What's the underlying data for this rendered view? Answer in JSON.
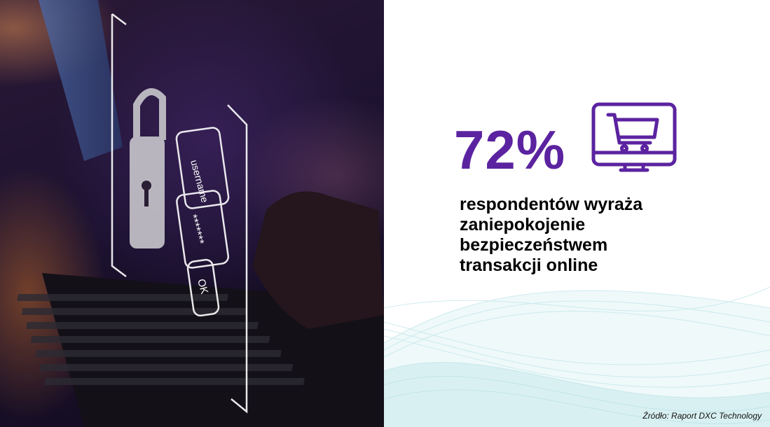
{
  "photo": {
    "login_field_username": "username",
    "login_field_password": "*******",
    "login_button": "OK"
  },
  "stat": {
    "value": "72%",
    "description_lines": [
      "respondentów wyraża",
      "zaniepokojenie",
      "bezpieczeństwem",
      "transakcji online"
    ],
    "icon": "monitor-shopping-cart-icon",
    "accent_color": "#5b23a0"
  },
  "source": "Źródło: Raport DXC Technology"
}
